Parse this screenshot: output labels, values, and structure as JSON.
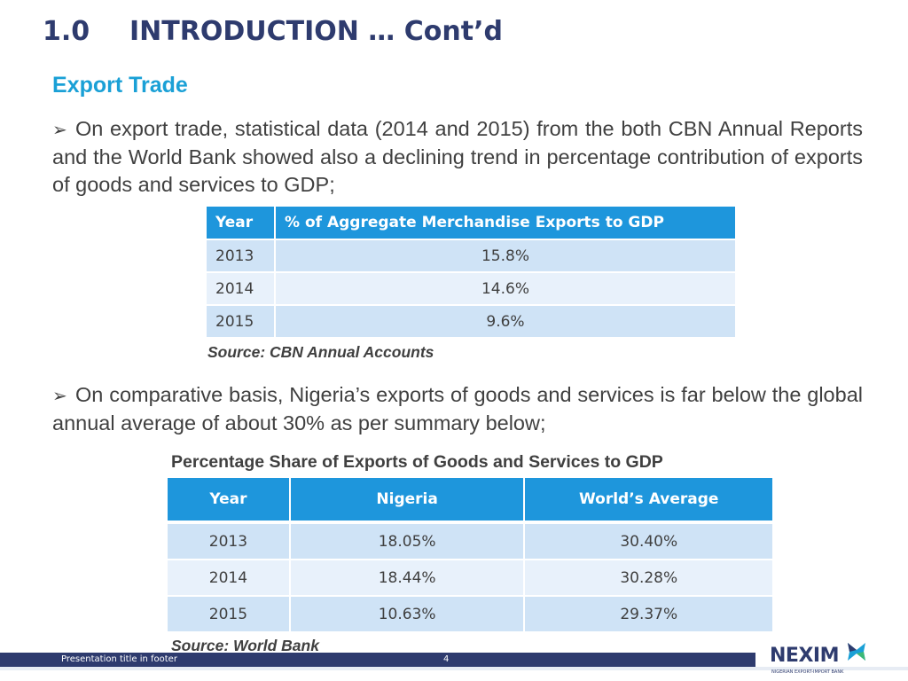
{
  "title": {
    "number": "1.0",
    "text": "INTRODUCTION … Cont’d"
  },
  "subheading": "Export Trade",
  "bullets": [
    "On export trade, statistical data (2014 and 2015) from the both CBN Annual Reports and the World Bank showed also a declining trend in percentage contribution of exports of goods and services to GDP;",
    "On comparative basis, Nigeria’s exports of goods and services is far below the global annual average of about 30% as per summary below;"
  ],
  "table1": {
    "headers": [
      "Year",
      "% of Aggregate Merchandise Exports to GDP"
    ],
    "rows": [
      [
        "2013",
        "15.8%"
      ],
      [
        "2014",
        "14.6%"
      ],
      [
        "2015",
        "9.6%"
      ]
    ],
    "source": "Source: CBN Annual Accounts"
  },
  "table2": {
    "caption": "Percentage Share of Exports of Goods and Services to GDP",
    "headers": [
      "Year",
      "Nigeria",
      "World’s Average"
    ],
    "rows": [
      [
        "2013",
        "18.05%",
        "30.40%"
      ],
      [
        "2014",
        "18.44%",
        "30.28%"
      ],
      [
        "2015",
        "10.63%",
        "29.37%"
      ]
    ],
    "source": "Source: World Bank"
  },
  "footer": {
    "text": "Presentation title in footer",
    "page": "4"
  },
  "logo": {
    "name": "NEXIM",
    "tagline": "NIGERIAN EXPORT-IMPORT BANK",
    "icon": "nexim-logo-mark"
  },
  "colors": {
    "title": "#2e3b6e",
    "accent": "#1aa0d6",
    "table_header": "#1e96dc",
    "row_dark": "#cfe3f6",
    "row_light": "#e8f1fb",
    "footer": "#2e3b6e"
  }
}
